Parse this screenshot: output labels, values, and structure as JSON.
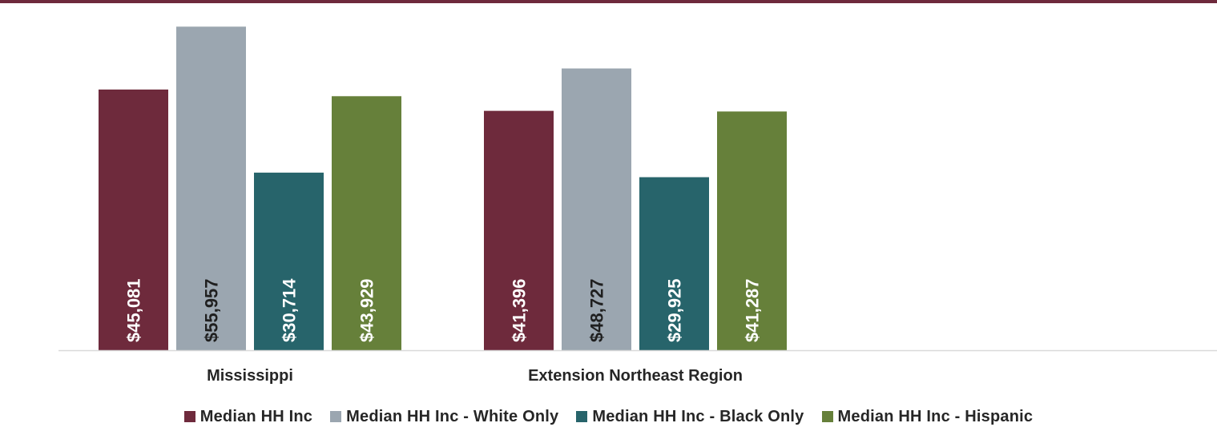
{
  "chart_data": {
    "type": "bar",
    "categories": [
      "Mississippi",
      "Extension Northeast Region"
    ],
    "series": [
      {
        "name": "Median HH Inc",
        "values": [
          45081,
          41396
        ],
        "labels": [
          "$45,081",
          "$41,396"
        ],
        "color": "#6e2a3c",
        "label_color": "#ffffff"
      },
      {
        "name": "Median HH Inc - White Only",
        "values": [
          55957,
          48727
        ],
        "labels": [
          "$55,957",
          "$48,727"
        ],
        "color": "#9ba6b0",
        "label_color": "#1f1f1f"
      },
      {
        "name": "Median HH Inc - Black Only",
        "values": [
          30714,
          29925
        ],
        "labels": [
          "$30,714",
          "$29,925"
        ],
        "color": "#27646b",
        "label_color": "#ffffff"
      },
      {
        "name": "Median HH Inc - Hispanic",
        "values": [
          43929,
          41287
        ],
        "labels": [
          "$43,929",
          "$41,287"
        ],
        "color": "#66803a",
        "label_color": "#ffffff"
      }
    ],
    "ylim": [
      0,
      56000
    ],
    "grid": false,
    "legend_position": "bottom",
    "title": "",
    "xlabel": "",
    "ylabel": ""
  },
  "colors": {
    "top_bar": "#6e2a3c",
    "axis": "#d9d9d9",
    "category_label": "#262626"
  }
}
